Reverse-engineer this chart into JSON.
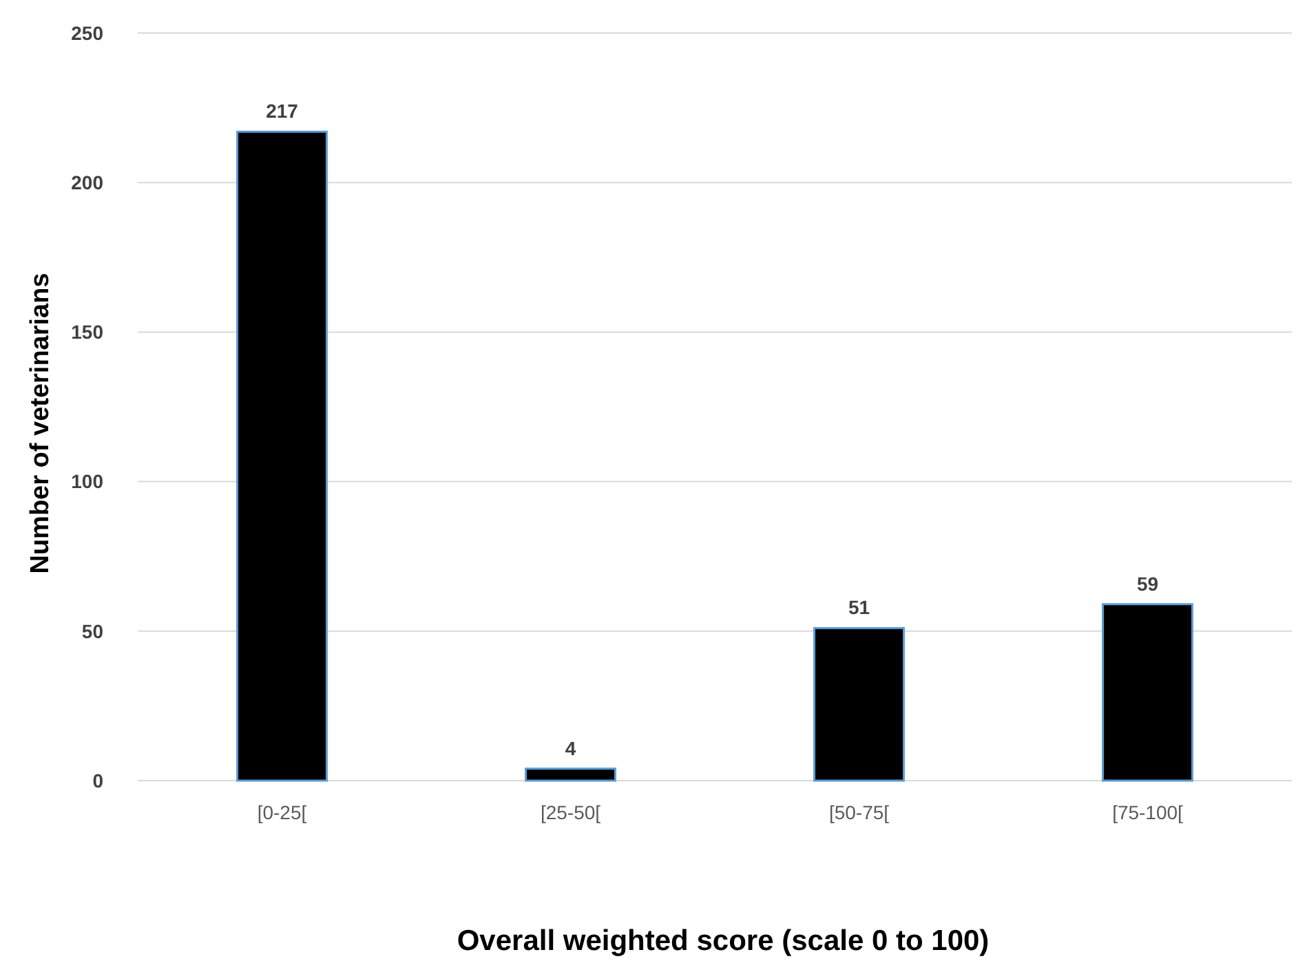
{
  "chart_data": {
    "type": "bar",
    "xlabel": "Overall weighted score (scale 0 to 100)",
    "ylabel": "Number of veterinarians",
    "categories": [
      "[0-25[",
      "[25-50[",
      "[50-75[",
      "[75-100["
    ],
    "values": [
      217,
      4,
      51,
      59
    ],
    "color": "#000000",
    "ylim": [
      0,
      250
    ],
    "yticks": [
      0,
      50,
      100,
      150,
      200,
      250
    ],
    "grid": "y",
    "data_labels": true
  }
}
